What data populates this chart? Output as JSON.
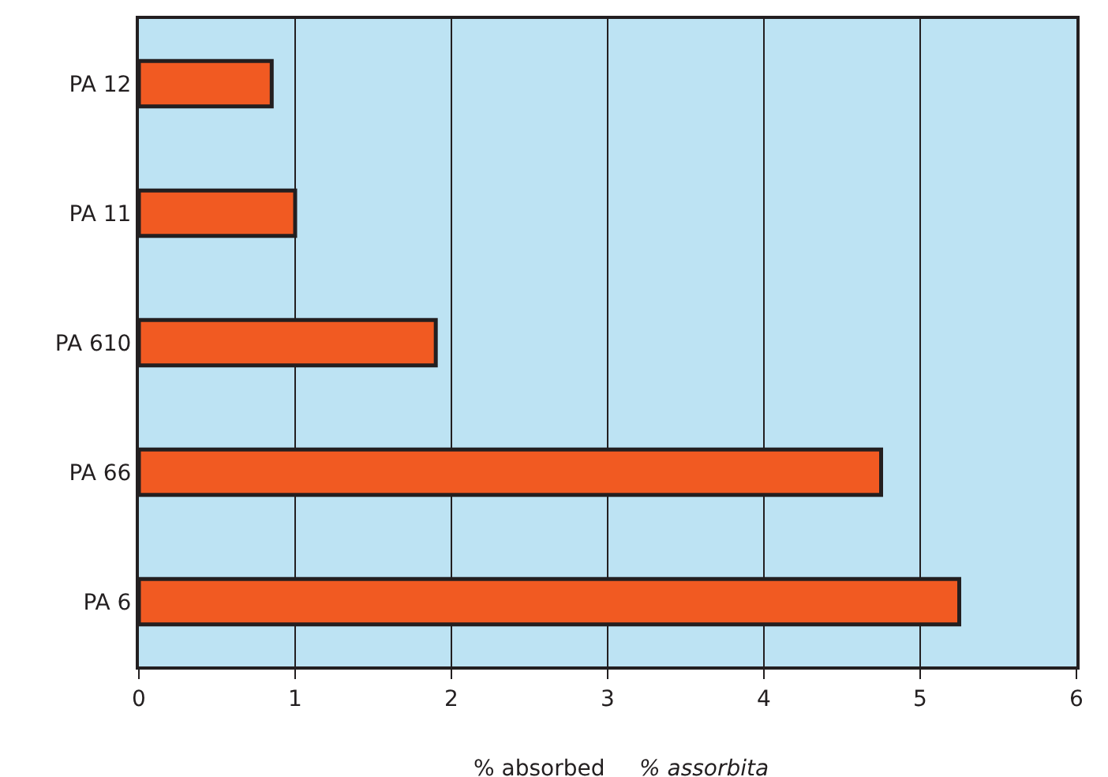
{
  "chart_data": {
    "type": "bar",
    "orientation": "horizontal",
    "categories": [
      "PA 12",
      "PA 11",
      "PA 610",
      "PA 66",
      "PA 6"
    ],
    "values": [
      0.85,
      1.0,
      1.9,
      4.75,
      5.25
    ],
    "color": "#f15a22",
    "xlim": [
      0,
      6
    ],
    "xticks": [
      0,
      1,
      2,
      3,
      4,
      5,
      6
    ],
    "grid": "x",
    "xlabel": "% absorbed",
    "annotations": [
      "% assorbita"
    ]
  }
}
